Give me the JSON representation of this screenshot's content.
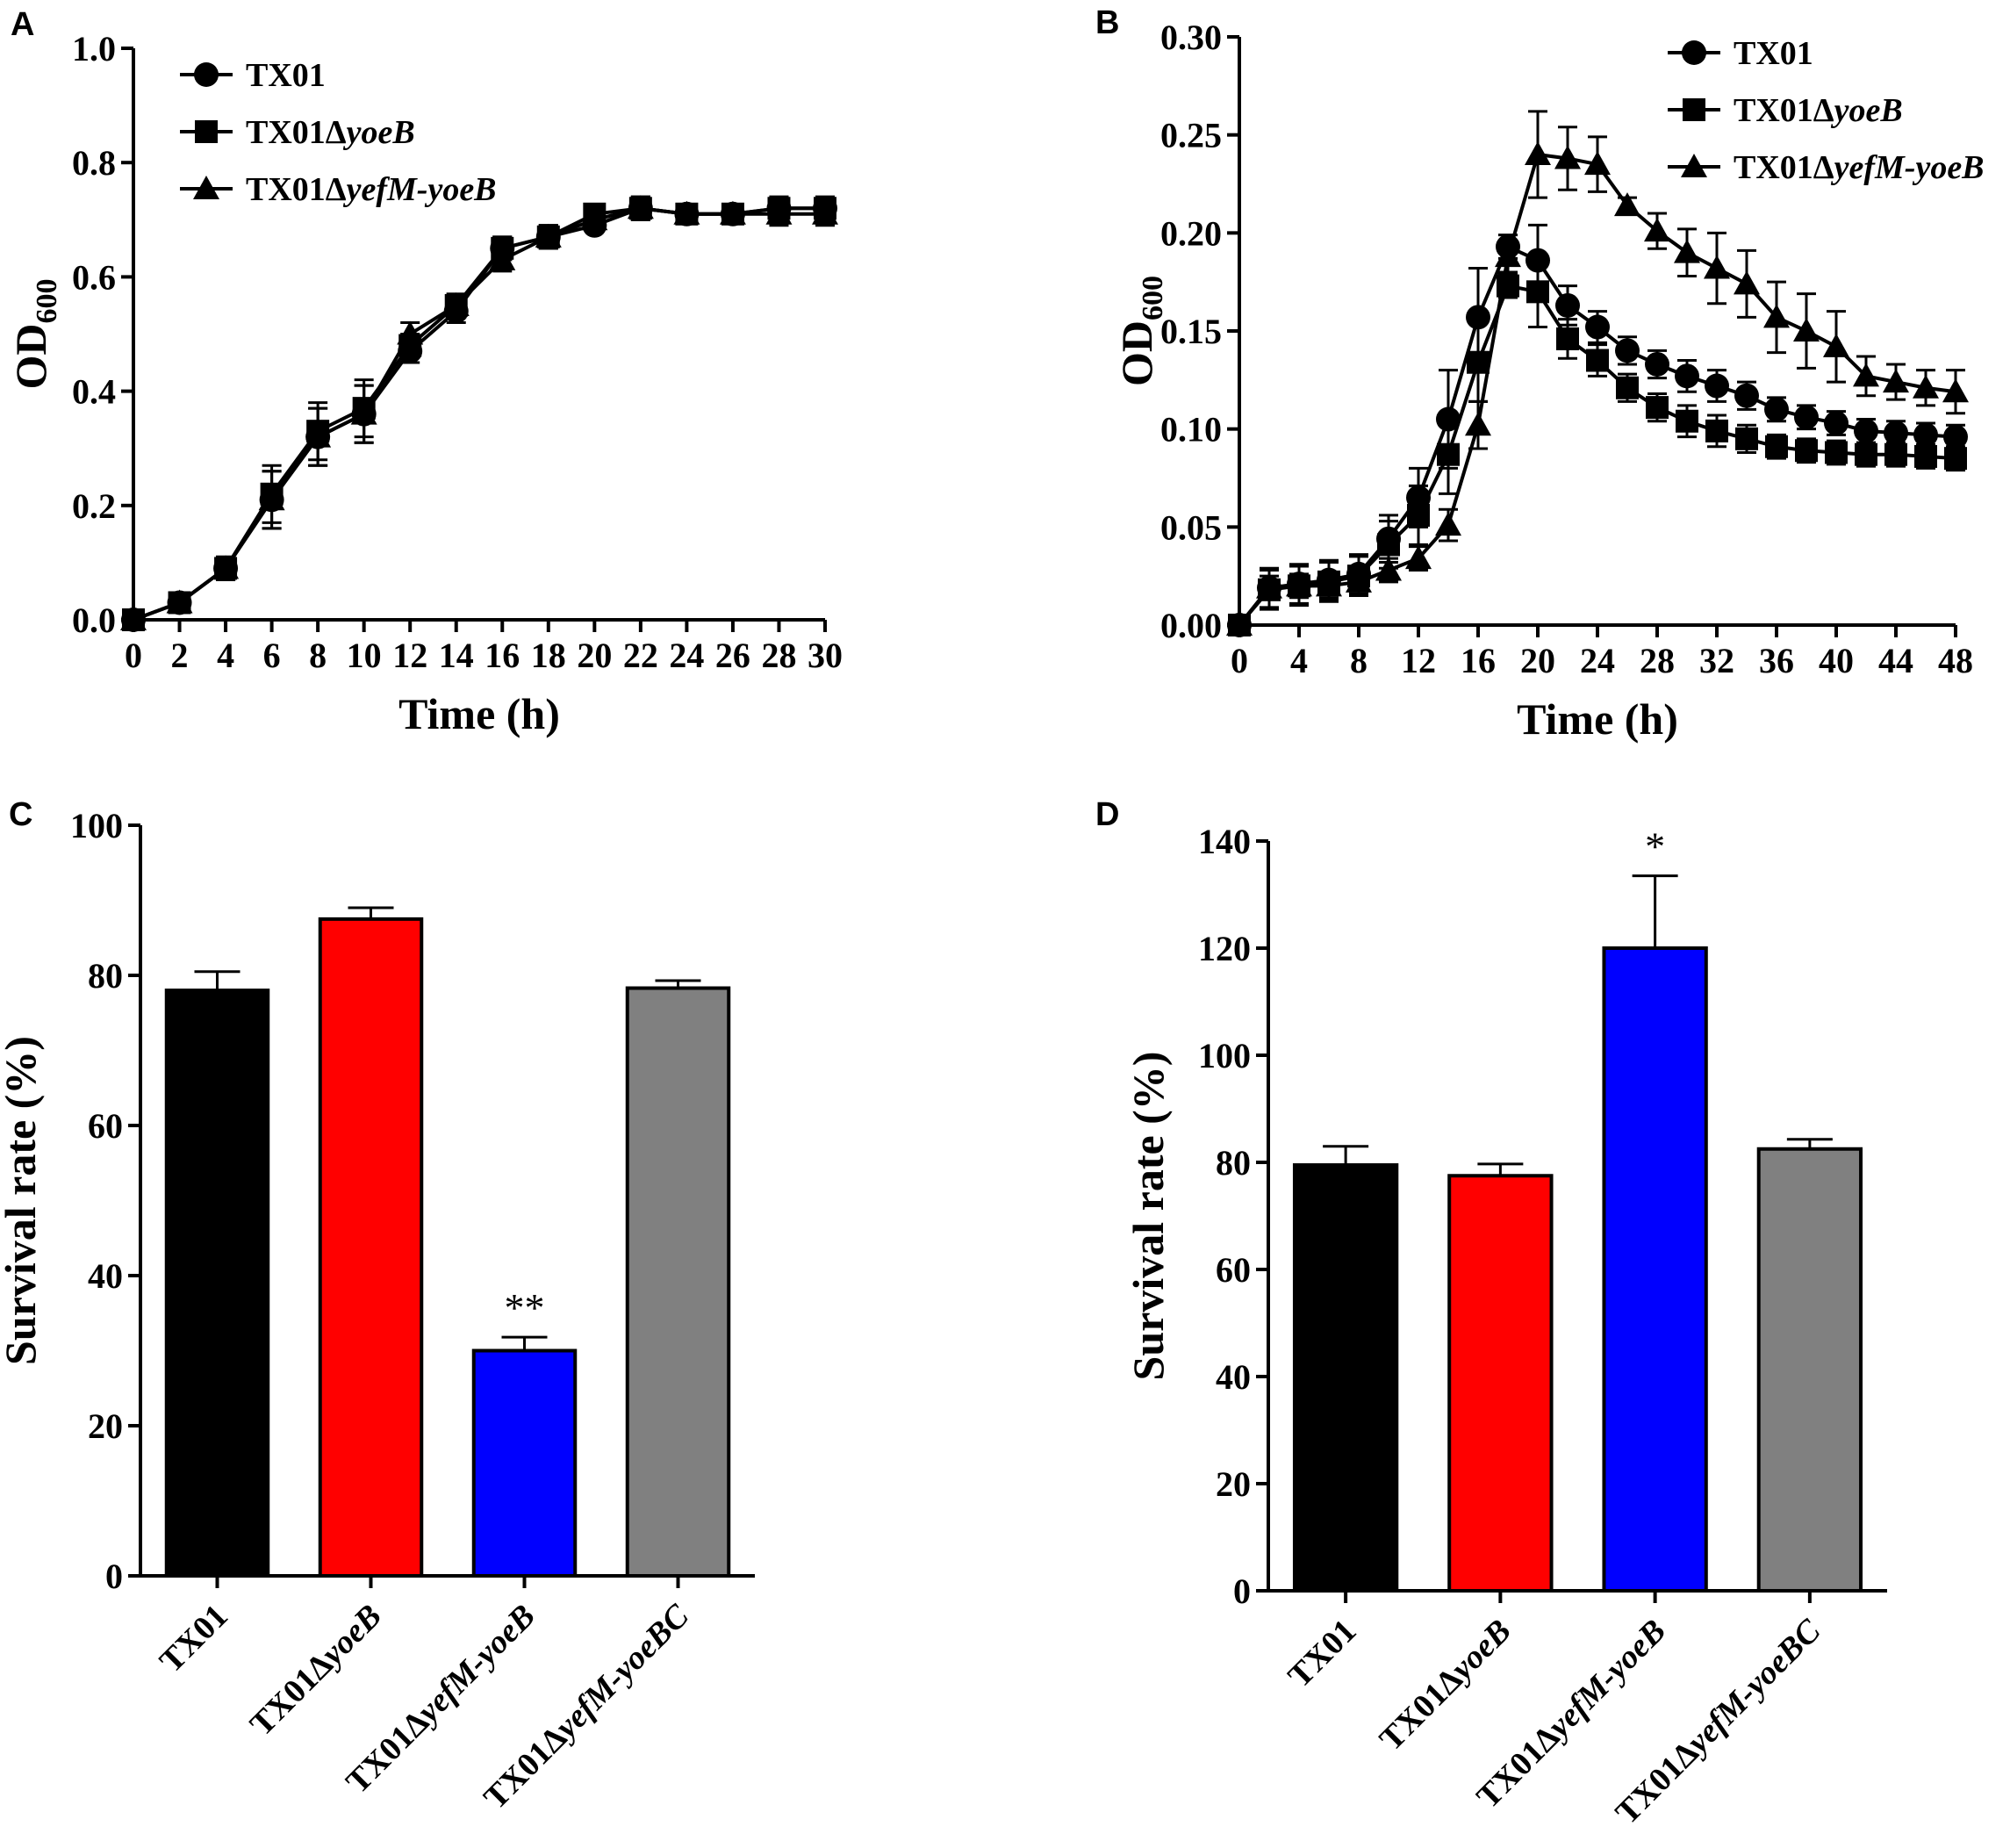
{
  "chart_data": [
    {
      "panel": "A",
      "type": "line",
      "xlabel": "Time (h)",
      "ylabel": "OD",
      "ylabel_sub": "600",
      "xlim": [
        0,
        30
      ],
      "ylim": [
        0,
        1.0
      ],
      "xticks": [
        0,
        2,
        4,
        6,
        8,
        10,
        12,
        14,
        16,
        18,
        20,
        22,
        24,
        26,
        28,
        30
      ],
      "yticks": [
        0.0,
        0.2,
        0.4,
        0.6,
        0.8,
        1.0
      ],
      "yfmt": 1,
      "legend": "top-left",
      "series": [
        {
          "name": "TX01",
          "marker": "circle",
          "x": [
            0,
            2,
            4,
            6,
            8,
            10,
            12,
            14,
            16,
            18,
            20,
            22,
            24,
            26,
            28,
            30
          ],
          "y": [
            0,
            0.03,
            0.09,
            0.21,
            0.32,
            0.36,
            0.47,
            0.54,
            0.65,
            0.67,
            0.69,
            0.72,
            0.71,
            0.71,
            0.72,
            0.72
          ],
          "err": [
            0,
            0.01,
            0.02,
            0.05,
            0.05,
            0.05,
            0.02,
            0.02,
            0.02,
            0.02,
            0.01,
            0.02,
            0.01,
            0.01,
            0.02,
            0.02
          ]
        },
        {
          "name": "TX01ΔyoeB",
          "name_plain": "TX01Δ",
          "name_italic": "yoeB",
          "marker": "square",
          "x": [
            0,
            2,
            4,
            6,
            8,
            10,
            12,
            14,
            16,
            18,
            20,
            22,
            24,
            26,
            28,
            30
          ],
          "y": [
            0,
            0.03,
            0.09,
            0.22,
            0.33,
            0.37,
            0.48,
            0.55,
            0.65,
            0.67,
            0.71,
            0.72,
            0.71,
            0.71,
            0.72,
            0.72
          ],
          "err": [
            0,
            0.01,
            0.02,
            0.05,
            0.05,
            0.05,
            0.02,
            0.02,
            0.02,
            0.02,
            0.01,
            0.02,
            0.01,
            0.01,
            0.02,
            0.02
          ]
        },
        {
          "name": "TX01ΔyefM-yoeB",
          "name_plain": "TX01Δ",
          "name_italic": "yefM-yoeB",
          "marker": "triangle",
          "x": [
            0,
            2,
            4,
            6,
            8,
            10,
            12,
            14,
            16,
            18,
            20,
            22,
            24,
            26,
            28,
            30
          ],
          "y": [
            0,
            0.03,
            0.09,
            0.21,
            0.32,
            0.36,
            0.5,
            0.55,
            0.63,
            0.67,
            0.7,
            0.72,
            0.71,
            0.71,
            0.71,
            0.71
          ],
          "err": [
            0,
            0.01,
            0.02,
            0.05,
            0.05,
            0.05,
            0.02,
            0.02,
            0.02,
            0.02,
            0.01,
            0.02,
            0.01,
            0.01,
            0.02,
            0.02
          ]
        }
      ]
    },
    {
      "panel": "B",
      "type": "line",
      "xlabel": "Time (h)",
      "ylabel": "OD",
      "ylabel_sub": "600",
      "xlim": [
        0,
        48
      ],
      "ylim": [
        0,
        0.3
      ],
      "xticks": [
        0,
        4,
        8,
        12,
        16,
        20,
        24,
        28,
        32,
        36,
        40,
        44,
        48
      ],
      "yticks": [
        0.0,
        0.05,
        0.1,
        0.15,
        0.2,
        0.25,
        0.3
      ],
      "yfmt": 2,
      "legend": "top-right",
      "series": [
        {
          "name": "TX01",
          "marker": "circle",
          "x": [
            0,
            2,
            4,
            6,
            8,
            10,
            12,
            14,
            16,
            18,
            20,
            22,
            24,
            26,
            28,
            30,
            32,
            34,
            36,
            38,
            40,
            42,
            44,
            46,
            48
          ],
          "y": [
            0,
            0.019,
            0.021,
            0.023,
            0.026,
            0.044,
            0.065,
            0.105,
            0.157,
            0.193,
            0.186,
            0.163,
            0.152,
            0.14,
            0.133,
            0.127,
            0.122,
            0.117,
            0.11,
            0.106,
            0.103,
            0.099,
            0.098,
            0.097,
            0.096
          ],
          "err": [
            0,
            0.01,
            0.01,
            0.01,
            0.01,
            0.012,
            0.015,
            0.025,
            0.025,
            0.006,
            0.018,
            0.01,
            0.008,
            0.007,
            0.007,
            0.008,
            0.008,
            0.007,
            0.006,
            0.006,
            0.006,
            0.006,
            0.006,
            0.006,
            0.006
          ]
        },
        {
          "name": "TX01ΔyoeB",
          "name_plain": "TX01Δ",
          "name_italic": "yoeB",
          "marker": "square",
          "x": [
            0,
            2,
            4,
            6,
            8,
            10,
            12,
            14,
            16,
            18,
            20,
            22,
            24,
            26,
            28,
            30,
            32,
            34,
            36,
            38,
            40,
            42,
            44,
            46,
            48
          ],
          "y": [
            0,
            0.018,
            0.02,
            0.022,
            0.025,
            0.041,
            0.056,
            0.087,
            0.134,
            0.173,
            0.17,
            0.146,
            0.135,
            0.121,
            0.111,
            0.104,
            0.099,
            0.095,
            0.091,
            0.089,
            0.088,
            0.087,
            0.087,
            0.086,
            0.085
          ],
          "err": [
            0,
            0.01,
            0.01,
            0.01,
            0.01,
            0.012,
            0.015,
            0.02,
            0.02,
            0.006,
            0.018,
            0.01,
            0.008,
            0.007,
            0.007,
            0.008,
            0.008,
            0.007,
            0.006,
            0.006,
            0.006,
            0.006,
            0.006,
            0.006,
            0.006
          ]
        },
        {
          "name": "TX01ΔyefM-yoeB",
          "name_plain": "TX01Δ",
          "name_italic": "yefM-yoeB",
          "marker": "triangle",
          "x": [
            0,
            2,
            4,
            6,
            8,
            10,
            12,
            14,
            16,
            18,
            20,
            22,
            24,
            26,
            28,
            30,
            32,
            34,
            36,
            38,
            40,
            42,
            44,
            46,
            48
          ],
          "y": [
            0,
            0.019,
            0.02,
            0.02,
            0.022,
            0.028,
            0.034,
            0.051,
            0.102,
            0.188,
            0.24,
            0.238,
            0.235,
            0.214,
            0.201,
            0.19,
            0.182,
            0.174,
            0.157,
            0.15,
            0.142,
            0.127,
            0.124,
            0.121,
            0.119
          ],
          "err": [
            0,
            0.006,
            0.006,
            0.006,
            0.006,
            0.006,
            0.006,
            0.008,
            0.012,
            0.008,
            0.022,
            0.016,
            0.014,
            0.004,
            0.009,
            0.012,
            0.018,
            0.017,
            0.018,
            0.019,
            0.018,
            0.01,
            0.009,
            0.009,
            0.011
          ]
        }
      ]
    },
    {
      "panel": "C",
      "type": "bar",
      "ylabel": "Survival rate (%)",
      "ylim": [
        0,
        100
      ],
      "yticks": [
        0,
        20,
        40,
        60,
        80,
        100
      ],
      "categories": [
        {
          "plain": "TX01",
          "italic": "",
          "suffix": ""
        },
        {
          "plain": "TX01Δ",
          "italic": "yoeB",
          "suffix": ""
        },
        {
          "plain": "TX01Δ",
          "italic": "yefM-yoeB",
          "suffix": ""
        },
        {
          "plain": "TX01Δ",
          "italic": "yefM-yoeB",
          "suffix": "C"
        }
      ],
      "values": [
        78,
        87.5,
        30,
        78.3
      ],
      "errors": [
        2.5,
        1.5,
        1.8,
        1.0
      ],
      "colors": [
        "#000000",
        "#ff0000",
        "#0000ff",
        "#808080"
      ],
      "significance": [
        "",
        "",
        "**",
        ""
      ]
    },
    {
      "panel": "D",
      "type": "bar",
      "ylabel": "Survival rate (%)",
      "ylim": [
        0,
        140
      ],
      "yticks": [
        0,
        20,
        40,
        60,
        80,
        100,
        120,
        140
      ],
      "categories": [
        {
          "plain": "TX01",
          "italic": "",
          "suffix": ""
        },
        {
          "plain": "TX01Δ",
          "italic": "yoeB",
          "suffix": ""
        },
        {
          "plain": "TX01Δ",
          "italic": "yefM-yoeB",
          "suffix": ""
        },
        {
          "plain": "TX01Δ",
          "italic": "yefM-yoeB",
          "suffix": "C"
        }
      ],
      "values": [
        79.5,
        77.5,
        120,
        82.5
      ],
      "errors": [
        3.5,
        2.2,
        13.5,
        1.8
      ],
      "colors": [
        "#000000",
        "#ff0000",
        "#0000ff",
        "#808080"
      ],
      "significance": [
        "",
        "",
        "*",
        ""
      ]
    }
  ]
}
